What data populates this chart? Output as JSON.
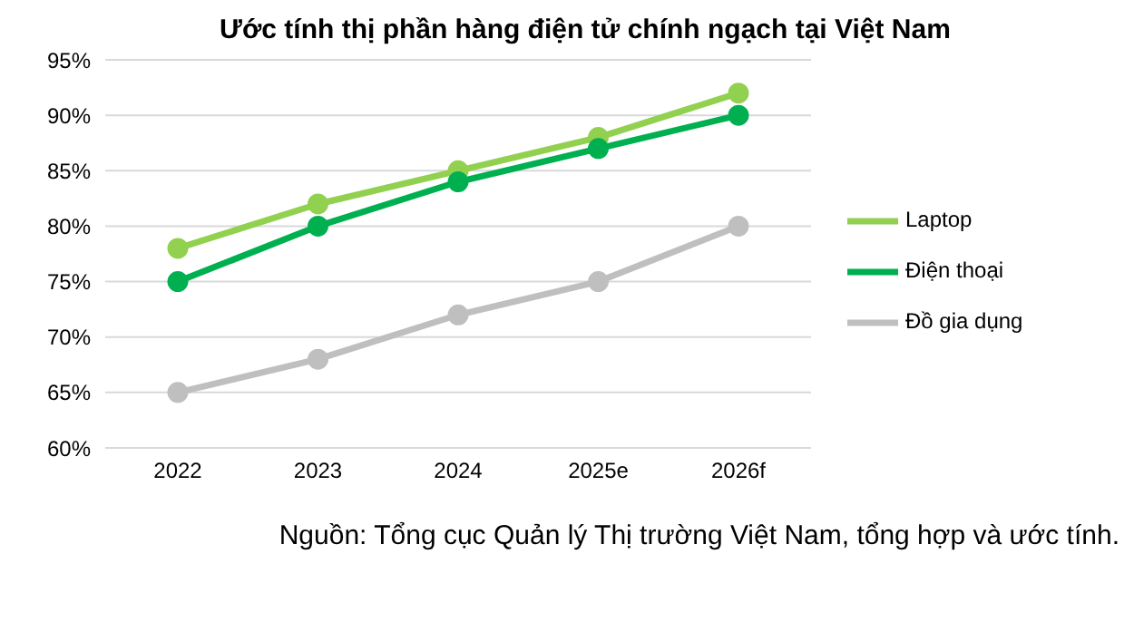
{
  "chart_data": {
    "type": "line",
    "title": "Ước tính thị phần hàng điện tử chính ngạch tại Việt Nam",
    "categories": [
      "2022",
      "2023",
      "2024",
      "2025e",
      "2026f"
    ],
    "series": [
      {
        "name": "Laptop",
        "color": "#92d050",
        "values": [
          78,
          82,
          85,
          88,
          92
        ]
      },
      {
        "name": "Điện thoại",
        "color": "#00b050",
        "values": [
          75,
          80,
          84,
          87,
          90
        ]
      },
      {
        "name": "Đồ gia dụng",
        "color": "#bfbfbf",
        "values": [
          65,
          68,
          72,
          75,
          80
        ]
      }
    ],
    "ylim": [
      60,
      95
    ],
    "yticks": [
      {
        "value": 60,
        "label": "60%"
      },
      {
        "value": 65,
        "label": "65%"
      },
      {
        "value": 70,
        "label": "70%"
      },
      {
        "value": 75,
        "label": "75%"
      },
      {
        "value": 80,
        "label": "80%"
      },
      {
        "value": 85,
        "label": "85%"
      },
      {
        "value": 90,
        "label": "90%"
      },
      {
        "value": 95,
        "label": "95%"
      }
    ],
    "grid": "y",
    "legend": "right",
    "marker": "circle",
    "line_style": "solid",
    "annotations": [
      "Nguồn: Tổng cục Quản lý Thị trường Việt Nam, tổng hợp và ước tính."
    ]
  }
}
